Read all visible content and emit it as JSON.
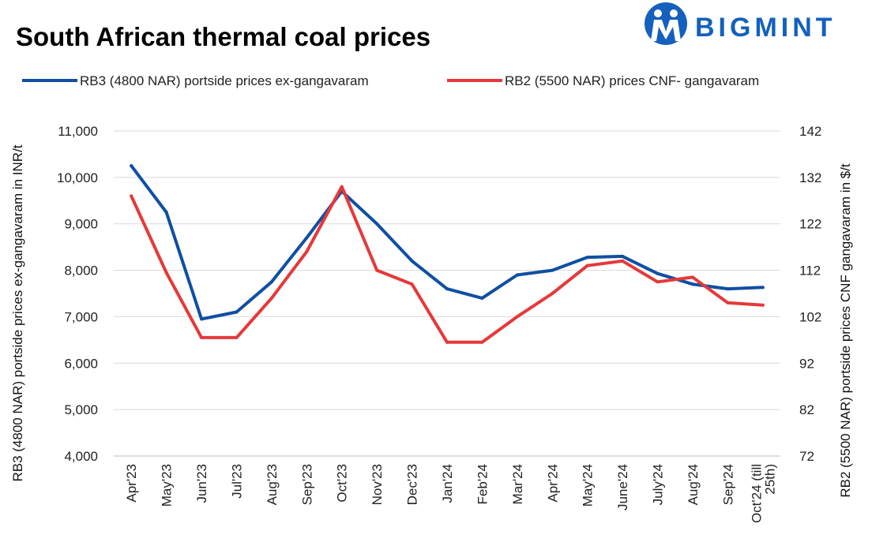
{
  "header": {
    "title": "South African thermal coal prices",
    "logo_text": "BIGMINT"
  },
  "colors": {
    "rb3": "#0f4fa3",
    "rb2": "#e5393a",
    "grid": "#d9d9d9",
    "logo": "#1560bd"
  },
  "chart_data": {
    "type": "line",
    "categories": [
      "Apr'23",
      "May'23",
      "Jun'23",
      "Jul'23",
      "Aug'23",
      "Sep'23",
      "Oct'23",
      "Nov'23",
      "Dec'23",
      "Jan'24",
      "Feb'24",
      "Mar'24",
      "Apr'24",
      "May'24",
      "June'24",
      "July'24",
      "Aug'24",
      "Sep'24",
      "Oct'24 (till 25th)"
    ],
    "category_lines": [
      [
        "Apr'23"
      ],
      [
        "May'23"
      ],
      [
        "Jun'23"
      ],
      [
        "Jul'23"
      ],
      [
        "Aug'23"
      ],
      [
        "Sep'23"
      ],
      [
        "Oct'23"
      ],
      [
        "Nov'23"
      ],
      [
        "Dec'23"
      ],
      [
        "Jan'24"
      ],
      [
        "Feb'24"
      ],
      [
        "Mar'24"
      ],
      [
        "Apr'24"
      ],
      [
        "May'24"
      ],
      [
        "June'24"
      ],
      [
        "July'24"
      ],
      [
        "Aug'24"
      ],
      [
        "Sep'24"
      ],
      [
        "Oct'24 (till",
        "25th)"
      ]
    ],
    "series": [
      {
        "name": "RB3 (4800 NAR) portside prices ex-gangavaram",
        "axis": "left",
        "values": [
          10250,
          9250,
          6950,
          7100,
          7750,
          8700,
          9700,
          9000,
          8200,
          7600,
          7400,
          7900,
          8000,
          8280,
          8300,
          7930,
          7700,
          7600,
          7630
        ]
      },
      {
        "name": "RB2 (5500 NAR) prices CNF- gangavaram",
        "axis": "right",
        "values": [
          128,
          111.5,
          97.5,
          97.5,
          106,
          116,
          130,
          112,
          109,
          96.5,
          96.5,
          102,
          107,
          113,
          114,
          109.5,
          110.5,
          105,
          104.5
        ]
      }
    ],
    "y_left": {
      "label": "RB3 (4800 NAR) portside prices ex-gangavaram in INR/t",
      "ylim": [
        4000,
        11000
      ],
      "ticks": [
        4000,
        5000,
        6000,
        7000,
        8000,
        9000,
        10000,
        11000
      ],
      "tick_labels": [
        "4,000",
        "5,000",
        "6,000",
        "7,000",
        "8,000",
        "9,000",
        "10,000",
        "11,000"
      ]
    },
    "y_right": {
      "label": "RB2 (5500 NAR) portside prices CNF  gangavaram in $/t",
      "ylim": [
        72,
        142
      ],
      "ticks": [
        72,
        82,
        92,
        102,
        112,
        122,
        132,
        142
      ],
      "tick_labels": [
        "72",
        "82",
        "92",
        "102",
        "112",
        "122",
        "132",
        "142"
      ]
    },
    "grid": true,
    "legend_position": "top"
  }
}
